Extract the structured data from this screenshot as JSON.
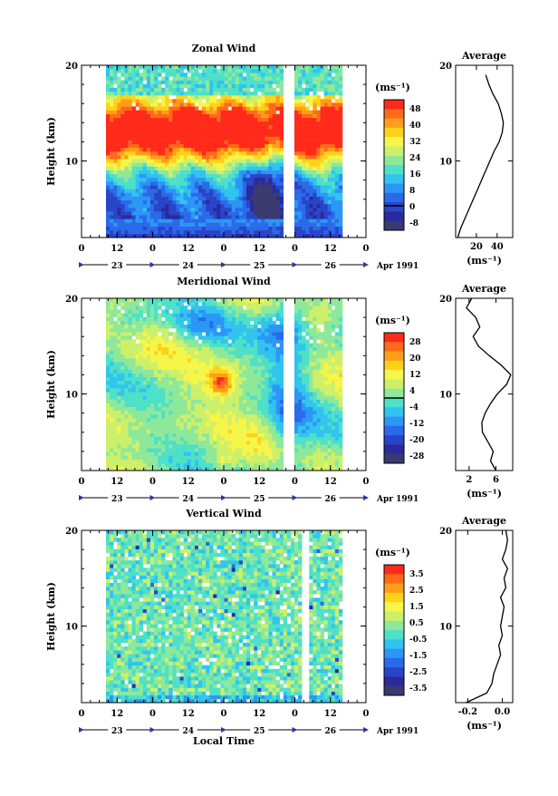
{
  "x_axis_label": "Local Time",
  "date_unit": "Apr 1991",
  "chart_data": [
    {
      "type": "heatmap",
      "title": "Zonal Wind",
      "ylabel": "Height (km)",
      "ylim": [
        2,
        20
      ],
      "ytick_labels": [
        "10",
        "20"
      ],
      "xtick_labels": [
        "0",
        "12",
        "0",
        "12",
        "0",
        "12",
        "0",
        "12",
        "0"
      ],
      "date_labels": [
        "23",
        "24",
        "25",
        "26"
      ],
      "colorbar_unit": "(ms⁻¹)",
      "colorbar_labels": [
        "48",
        "40",
        "32",
        "24",
        "16",
        "8",
        "0",
        "-8"
      ],
      "colorbar_colors": [
        "#ff2a1a",
        "#ff6a1a",
        "#ff9e1a",
        "#ffd21a",
        "#f6f54a",
        "#cdf06a",
        "#8ee89a",
        "#4ee0c8",
        "#30c4ee",
        "#2c96f6",
        "#2a6ae8",
        "#2a44c8",
        "#2a2a9c",
        "#3a3a70"
      ],
      "colorbar_range": [
        -12,
        52
      ],
      "colorbar_zero": 0,
      "average": {
        "title": "Average",
        "unit": "(ms⁻¹)",
        "xtick_labels": [
          "20",
          "40"
        ],
        "xlim": [
          0,
          55
        ],
        "heights": [
          2,
          3,
          4,
          5,
          6,
          7,
          8,
          9,
          10,
          11,
          12,
          13,
          14,
          15,
          16,
          17,
          18,
          19
        ],
        "values": [
          2,
          5,
          9,
          13,
          17,
          21,
          25,
          29,
          33,
          37,
          42,
          45,
          46,
          44,
          41,
          36,
          32,
          29
        ]
      },
      "field": {
        "kind": "zonal",
        "gaps": [
          [
            48,
            50
          ]
        ]
      }
    },
    {
      "type": "heatmap",
      "title": "Meridional Wind",
      "ylabel": "Height (km)",
      "ylim": [
        2,
        20
      ],
      "ytick_labels": [
        "10",
        "20"
      ],
      "xtick_labels": [
        "0",
        "12",
        "0",
        "12",
        "0",
        "12",
        "0",
        "12",
        "0"
      ],
      "date_labels": [
        "23",
        "24",
        "25",
        "26"
      ],
      "colorbar_unit": "(ms⁻¹)",
      "colorbar_labels": [
        "28",
        "20",
        "12",
        "4",
        "-4",
        "-12",
        "-20",
        "-28"
      ],
      "colorbar_colors": [
        "#ff2a1a",
        "#ff6a1a",
        "#ff9e1a",
        "#ffd21a",
        "#f6f54a",
        "#cdf06a",
        "#8ee89a",
        "#4ee0c8",
        "#30c4ee",
        "#2c96f6",
        "#2a6ae8",
        "#2a44c8",
        "#2a2a9c",
        "#3a3a70"
      ],
      "colorbar_range": [
        -32,
        32
      ],
      "colorbar_zero": 0,
      "average": {
        "title": "Average",
        "unit": "(ms⁻¹)",
        "xtick_labels": [
          "2",
          "6"
        ],
        "xlim": [
          0,
          8.5
        ],
        "heights": [
          2,
          3,
          4,
          5,
          6,
          7,
          8,
          9,
          10,
          11,
          12,
          13,
          14,
          15,
          16,
          17,
          18,
          19,
          20
        ],
        "values": [
          6,
          5.2,
          5.6,
          4.8,
          4.0,
          3.9,
          4.4,
          5.2,
          6.2,
          7.6,
          8.2,
          6.8,
          5.0,
          3.4,
          2.6,
          3.6,
          3.0,
          1.6,
          2.4
        ]
      },
      "field": {
        "kind": "meridional",
        "gaps": [
          [
            48,
            50
          ]
        ]
      }
    },
    {
      "type": "heatmap",
      "title": "Vertical Wind",
      "ylabel": "Height (km)",
      "ylim": [
        2,
        20
      ],
      "ytick_labels": [
        "10",
        "20"
      ],
      "xtick_labels": [
        "0",
        "12",
        "0",
        "12",
        "0",
        "12",
        "0",
        "12",
        "0"
      ],
      "date_labels": [
        "23",
        "24",
        "25",
        "26"
      ],
      "colorbar_unit": "(ms⁻¹)",
      "colorbar_labels": [
        "3.5",
        "2.5",
        "1.5",
        "0.5",
        "-0.5",
        "-1.5",
        "-2.5",
        "-3.5"
      ],
      "colorbar_colors": [
        "#ff2a1a",
        "#ff6a1a",
        "#ff9e1a",
        "#ffd21a",
        "#f6f54a",
        "#cdf06a",
        "#8ee89a",
        "#4ee0c8",
        "#30c4ee",
        "#2c96f6",
        "#2a6ae8",
        "#2a44c8",
        "#2a2a9c",
        "#3a3a70"
      ],
      "colorbar_range": [
        -4,
        4
      ],
      "colorbar_zero": null,
      "average": {
        "title": "Average",
        "unit": "(ms⁻¹)",
        "xtick_labels": [
          "-0.2",
          "0.0"
        ],
        "xlim": [
          -0.27,
          0.06
        ],
        "heights": [
          2,
          3,
          4,
          5,
          6,
          7,
          8,
          9,
          10,
          11,
          12,
          13,
          14,
          15,
          16,
          17,
          18,
          19,
          20
        ],
        "values": [
          -0.21,
          -0.09,
          -0.06,
          -0.05,
          -0.03,
          -0.01,
          -0.02,
          0.0,
          -0.01,
          0.0,
          0.01,
          -0.01,
          0.02,
          0.01,
          0.03,
          0.0,
          0.02,
          0.03,
          0.02
        ]
      },
      "field": {
        "kind": "vertical",
        "gaps": [
          [
            53,
            54
          ]
        ]
      }
    }
  ]
}
